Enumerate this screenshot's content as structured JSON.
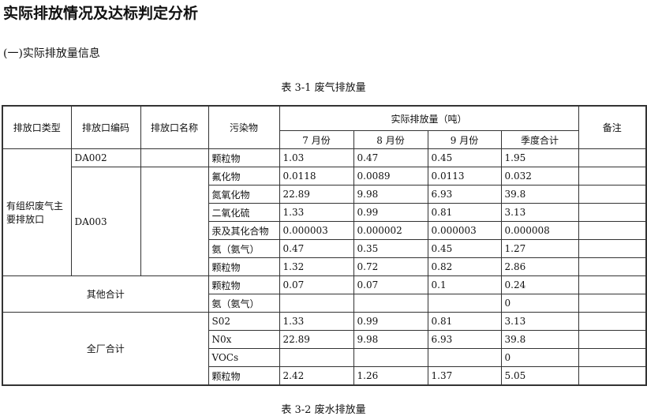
{
  "title": "实际排放情况及达标判定分析",
  "subtitle": "(一)实际排放量信息",
  "table1_caption": "表 3-1 废气排放量",
  "table2_caption": "表 3-2 废水排放量",
  "headers": {
    "type": "排放口类型",
    "code": "排放口编码",
    "name": "排放口名称",
    "pollutant": "污染物",
    "actual": "实际排放量（吨）",
    "months": [
      "7 月份",
      "8 月份",
      "9 月份",
      "季度合计"
    ],
    "remark": "备注"
  },
  "groups": {
    "main_type": "有组织废气主要排放口",
    "da002": "DA002",
    "da003": "DA003",
    "other_total": "其他合计",
    "plant_total": "全厂合计"
  },
  "rows": [
    {
      "pollutant": "颗粒物",
      "values": [
        "1.03",
        "0.47",
        "0.45",
        "1.95"
      ]
    },
    {
      "pollutant": "氟化物",
      "values": [
        "0.0118",
        "0.0089",
        "0.0113",
        "0.032"
      ]
    },
    {
      "pollutant": "氮氧化物",
      "values": [
        "22.89",
        "9.98",
        "6.93",
        "39.8"
      ]
    },
    {
      "pollutant": "二氧化硫",
      "values": [
        "1.33",
        "0.99",
        "0.81",
        "3.13"
      ]
    },
    {
      "pollutant": "汞及其化合物",
      "values": [
        "0.000003",
        "0.000002",
        "0.000003",
        "0.000008"
      ]
    },
    {
      "pollutant": "氨（氨气）",
      "values": [
        "0.47",
        "0.35",
        "0.45",
        "1.27"
      ]
    },
    {
      "pollutant": "颗粒物",
      "values": [
        "1.32",
        "0.72",
        "0.82",
        "2.86"
      ]
    },
    {
      "pollutant": "颗粒物",
      "values": [
        "0.07",
        "0.07",
        "0.1",
        "0.24"
      ]
    },
    {
      "pollutant": "氨（氨气）",
      "values": [
        "",
        "",
        "",
        "0"
      ]
    },
    {
      "pollutant": "S02",
      "values": [
        "1.33",
        "0.99",
        "0.81",
        "3.13"
      ]
    },
    {
      "pollutant": "N0x",
      "values": [
        "22.89",
        "9.98",
        "6.93",
        "39.8"
      ]
    },
    {
      "pollutant": "VOCs",
      "values": [
        "",
        "",
        "",
        "0"
      ]
    },
    {
      "pollutant": "颗粒物",
      "values": [
        "2.42",
        "1.26",
        "1.37",
        "5.05"
      ]
    }
  ]
}
